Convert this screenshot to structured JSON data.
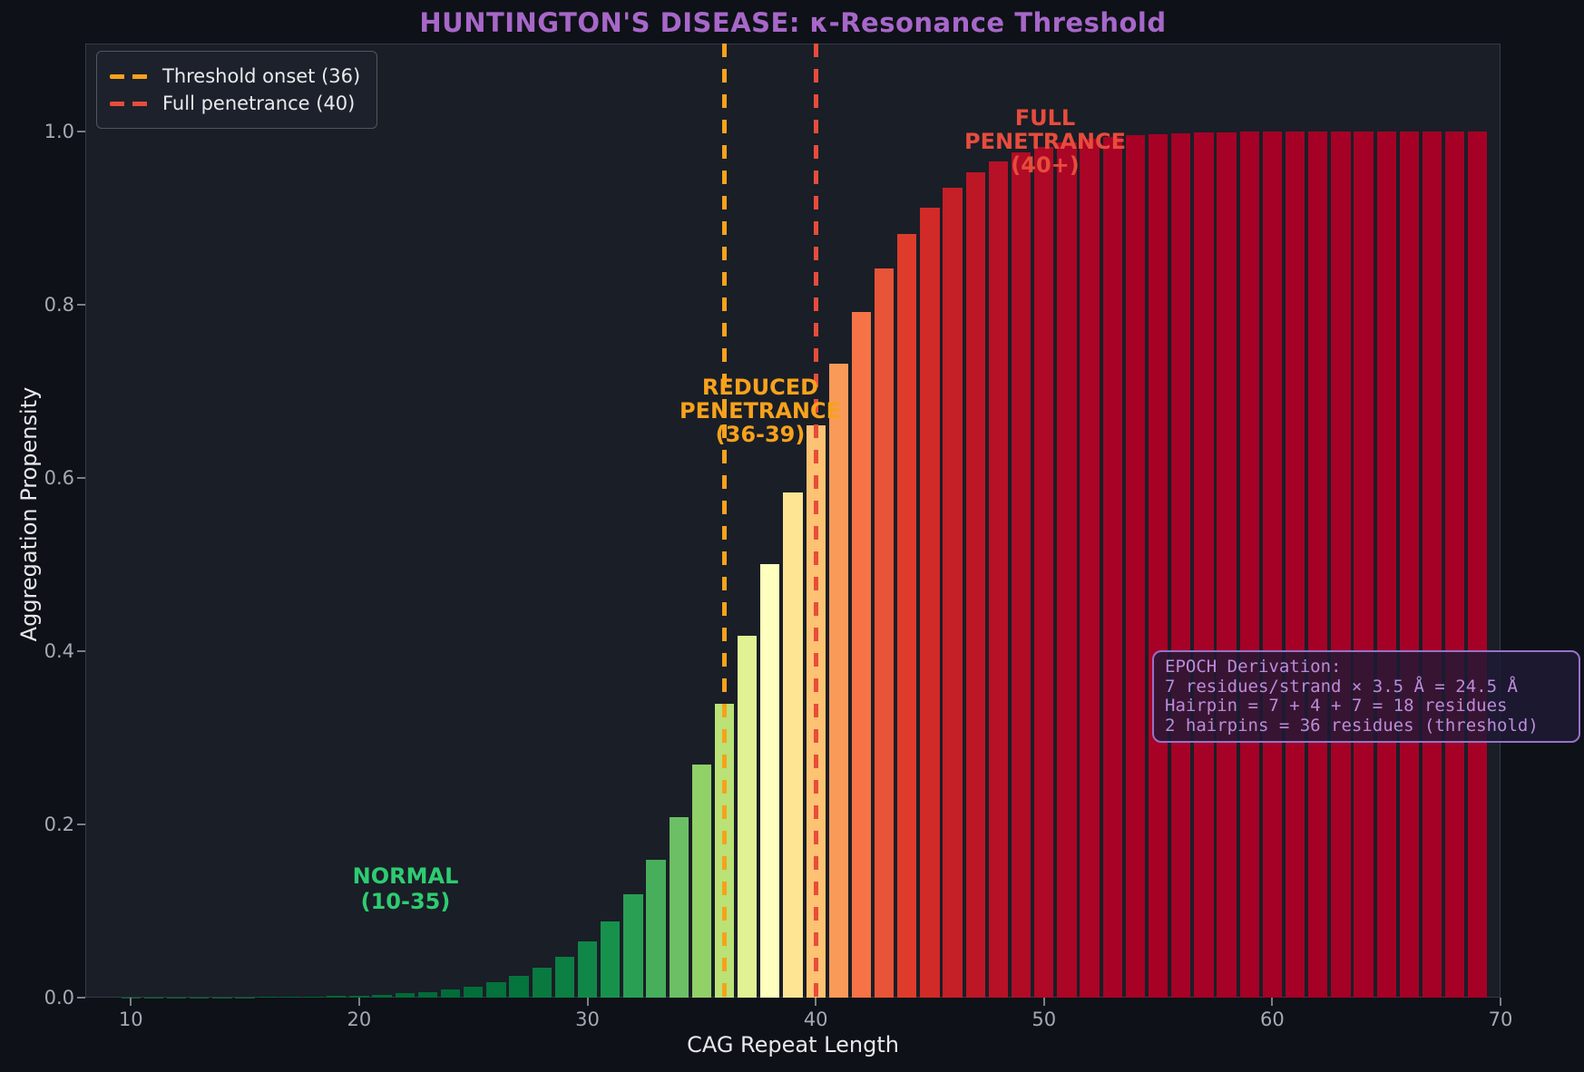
{
  "title": {
    "text": "HUNTINGTON'S DISEASE: κ-Resonance Threshold",
    "color": "#a767c9"
  },
  "axes": {
    "xlabel": "CAG Repeat Length",
    "ylabel": "Aggregation Propensity",
    "x_tick_labels": [
      "10",
      "20",
      "30",
      "40",
      "50",
      "60",
      "70"
    ],
    "y_tick_labels": [
      "0.0",
      "0.2",
      "0.4",
      "0.6",
      "0.8",
      "1.0"
    ]
  },
  "legend": {
    "items": [
      {
        "label": "Threshold onset (36)",
        "color": "#f7a21c"
      },
      {
        "label": "Full penetrance (40)",
        "color": "#e74c3c"
      }
    ]
  },
  "annotations": {
    "normal": {
      "line1": "NORMAL",
      "line2": "(10-35)",
      "color": "#2ecc71"
    },
    "reduced": {
      "line1": "REDUCED",
      "line2": "PENETRANCE",
      "line3": "(36-39)",
      "color": "#f7a21c"
    },
    "full": {
      "line1": "FULL",
      "line2": "PENETRANCE",
      "line3": "(40+)",
      "color": "#e74c3c"
    },
    "epoch": {
      "line1": "EPOCH Derivation:",
      "line2": "7 residues/strand × 3.5 Å = 24.5 Å",
      "line3": "Hairpin = 7 + 4 + 7 = 18 residues",
      "line4": "2 hairpins = 36 residues (threshold)",
      "text_color": "#bd8bd9",
      "border_color": "#9671c9"
    }
  },
  "chart_data": {
    "type": "bar",
    "title": "HUNTINGTON'S DISEASE: κ-Resonance Threshold",
    "xlabel": "CAG Repeat Length",
    "ylabel": "Aggregation Propensity",
    "xlim": [
      8,
      70
    ],
    "ylim": [
      0,
      1.101
    ],
    "x_ticks": [
      10,
      20,
      30,
      40,
      50,
      60,
      70
    ],
    "y_ticks": [
      0.0,
      0.2,
      0.4,
      0.6,
      0.8,
      1.0
    ],
    "grid": false,
    "legend_position": "upper-left",
    "bar_width": 0.85,
    "x": [
      10,
      11,
      12,
      13,
      14,
      15,
      16,
      17,
      18,
      19,
      20,
      21,
      22,
      23,
      24,
      25,
      26,
      27,
      28,
      29,
      30,
      31,
      32,
      33,
      34,
      35,
      36,
      37,
      38,
      39,
      40,
      41,
      42,
      43,
      44,
      45,
      46,
      47,
      48,
      49,
      50,
      51,
      52,
      53,
      54,
      55,
      56,
      57,
      58,
      59,
      60,
      61,
      62,
      63,
      64,
      65,
      66,
      67,
      68,
      69
    ],
    "values": [
      0.0001,
      0.0001,
      0.0002,
      0.0002,
      0.0003,
      0.0005,
      0.0007,
      0.0009,
      0.0013,
      0.0018,
      0.0025,
      0.0034,
      0.0048,
      0.0067,
      0.0093,
      0.013,
      0.018,
      0.0249,
      0.0344,
      0.0474,
      0.065,
      0.0884,
      0.1192,
      0.1589,
      0.2086,
      0.2689,
      0.3393,
      0.4174,
      0.5,
      0.5826,
      0.6607,
      0.7311,
      0.7914,
      0.8411,
      0.8808,
      0.9116,
      0.935,
      0.9526,
      0.9655,
      0.9751,
      0.982,
      0.9871,
      0.9907,
      0.9933,
      0.9952,
      0.9966,
      0.9975,
      0.9982,
      0.9987,
      0.9991,
      0.9993,
      0.9995,
      0.9997,
      0.9998,
      0.9998,
      0.9999,
      0.9999,
      0.9999,
      0.9999,
      0.9999
    ],
    "bar_colormap": "RdYlGn_r (color = f(propensity))",
    "colormap_stops": [
      {
        "t": 0.0,
        "color": "#a50026"
      },
      {
        "t": 0.1,
        "color": "#d73027"
      },
      {
        "t": 0.2,
        "color": "#f46d43"
      },
      {
        "t": 0.3,
        "color": "#fdae61"
      },
      {
        "t": 0.4,
        "color": "#fee08b"
      },
      {
        "t": 0.5,
        "color": "#ffffbf"
      },
      {
        "t": 0.6,
        "color": "#d9ef8b"
      },
      {
        "t": 0.7,
        "color": "#a6d96a"
      },
      {
        "t": 0.8,
        "color": "#66bd63"
      },
      {
        "t": 0.9,
        "color": "#1a9850"
      },
      {
        "t": 1.0,
        "color": "#006837"
      }
    ],
    "threshold_lines": [
      {
        "x": 36,
        "label": "Threshold onset (36)",
        "color": "#f7a21c",
        "style": "dashed"
      },
      {
        "x": 40,
        "label": "Full penetrance (40)",
        "color": "#e74c3c",
        "style": "dashed"
      }
    ]
  },
  "colors": {
    "figure_background": "#0e1117",
    "plot_background": "#1a1e27",
    "spine": "#343b45",
    "tick_label": "#a4aab2",
    "axis_label": "#e6e8eb"
  }
}
